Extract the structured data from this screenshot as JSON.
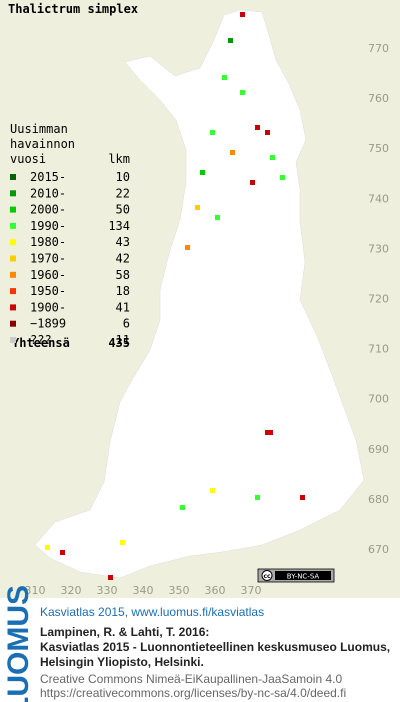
{
  "title": "Thalictrum simplex",
  "legend": {
    "header": [
      "Uusimman",
      "havainnon",
      "vuosi"
    ],
    "count_header": "lkm",
    "rows": [
      {
        "label": "2015-",
        "count": "10",
        "color": "#006400"
      },
      {
        "label": "2010-",
        "count": "22",
        "color": "#009900"
      },
      {
        "label": "2000-",
        "count": "50",
        "color": "#00cc00"
      },
      {
        "label": "1990-",
        "count": "134",
        "color": "#33ff33"
      },
      {
        "label": "1980-",
        "count": "43",
        "color": "#ffff00"
      },
      {
        "label": "1970-",
        "count": "42",
        "color": "#ffcc00"
      },
      {
        "label": "1960-",
        "count": "58",
        "color": "#ff8800"
      },
      {
        "label": "1950-",
        "count": "18",
        "color": "#ff3300"
      },
      {
        "label": "1900-",
        "count": "41",
        "color": "#cc0000"
      },
      {
        "label": "−1899",
        "count": "6",
        "color": "#880000"
      },
      {
        "label": "???",
        "count": "11",
        "color": "#cccccc"
      }
    ],
    "total": {
      "label": "Yhteensä",
      "count": "435"
    }
  },
  "axis": {
    "y": [
      "770",
      "760",
      "750",
      "740",
      "730",
      "720",
      "710",
      "700",
      "690",
      "680",
      "670"
    ],
    "x": [
      "310",
      "320",
      "330",
      "340",
      "350",
      "360",
      "370"
    ]
  },
  "license_badge": {
    "cc": "cc",
    "terms": "BY-NC-SA"
  },
  "footer": {
    "brand": "LUOMUS",
    "title": "Kasviatlas 2015, www.luomus.fi/kasviatlas",
    "citation": [
      "Lampinen, R. & Lahti, T. 2016:",
      "Kasviatlas 2015 - Luonnontieteellinen keskusmuseo Luomus,",
      "Helsingin Yliopisto, Helsinki."
    ],
    "license": [
      "Creative Commons Nimeä-EiKaupallinen-JaaSamoin 4.0",
      "https://creativecommons.org/licenses/by-nc-sa/4.0/deed.fi"
    ]
  }
}
